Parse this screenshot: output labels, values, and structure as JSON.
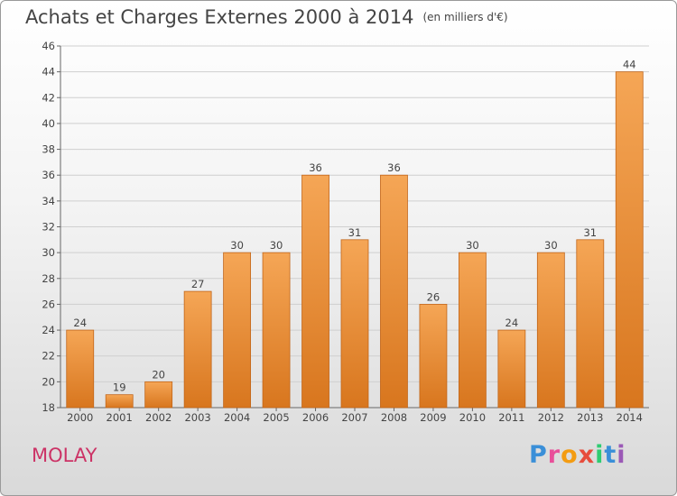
{
  "header": {
    "title": "Achats et Charges Externes 2000 à 2014",
    "unit": "(en milliers d'€)"
  },
  "footer": {
    "place": "MOLAY",
    "logo_letters": [
      {
        "ch": "P",
        "color": "#3a8fd8"
      },
      {
        "ch": "r",
        "color": "#e94f9a"
      },
      {
        "ch": "o",
        "color": "#f39c12"
      },
      {
        "ch": "x",
        "color": "#e74c3c"
      },
      {
        "ch": "i",
        "color": "#2ecc71"
      },
      {
        "ch": "t",
        "color": "#3a8fd8"
      },
      {
        "ch": "i",
        "color": "#9b59b6"
      }
    ]
  },
  "colors": {
    "bar_top": "#f5a656",
    "bar_bottom": "#d8761e",
    "bar_border": "#c2661a",
    "grid": "#cfcfcf"
  },
  "chart_data": {
    "type": "bar",
    "title": "Achats et Charges Externes 2000 à 2014",
    "subtitle": "(en milliers d'€)",
    "categories": [
      "2000",
      "2001",
      "2002",
      "2003",
      "2004",
      "2005",
      "2006",
      "2007",
      "2008",
      "2009",
      "2010",
      "2011",
      "2012",
      "2013",
      "2014"
    ],
    "values": [
      24,
      19,
      20,
      27,
      30,
      30,
      36,
      31,
      36,
      26,
      30,
      24,
      30,
      31,
      44
    ],
    "ylim": [
      18,
      46
    ],
    "yticks": [
      18,
      20,
      22,
      24,
      26,
      28,
      30,
      32,
      34,
      36,
      38,
      40,
      42,
      44,
      46
    ],
    "grid": true,
    "data_labels": true
  }
}
